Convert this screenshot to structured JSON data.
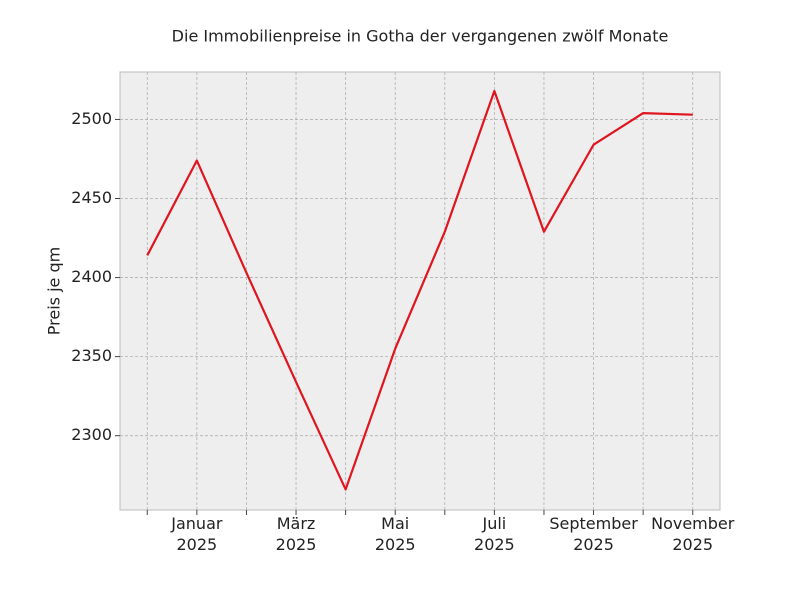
{
  "chart_data": {
    "type": "line",
    "title": "Die Immobilienpreise in Gotha der vergangenen zwölf Monate",
    "y_label": "Preis je qm",
    "categories": [
      null,
      "Januar\n2025",
      null,
      "März\n2025",
      null,
      "Mai\n2025",
      null,
      "Juli\n2025",
      null,
      "September\n2025",
      null,
      "November\n2025"
    ],
    "series": [
      {
        "name": "Preis je qm",
        "color": "#e0151f",
        "values": [
          2414,
          2474,
          2403,
          2334,
          2266,
          2355,
          2429,
          2518,
          2429,
          2484,
          2504,
          2503
        ]
      }
    ],
    "ylim": [
      2253,
      2530
    ],
    "yticks": [
      2300,
      2350,
      2400,
      2450,
      2500
    ],
    "grid": true
  }
}
